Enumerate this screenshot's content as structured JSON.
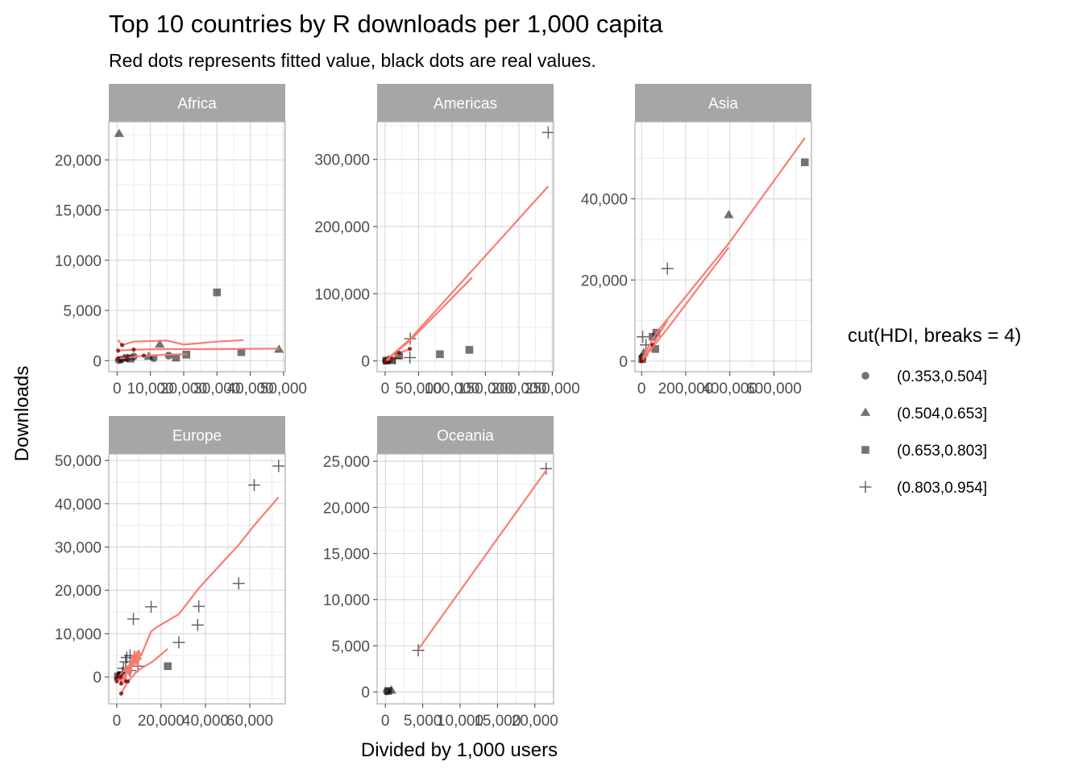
{
  "chart_data": {
    "type": "scatter",
    "title": "Top 10 countries by R downloads per 1,000 capita",
    "subtitle": "Red dots represents fitted value, black dots are real values.",
    "xlabel": "Divided by 1,000 users",
    "ylabel": "Downloads",
    "grid": true,
    "legend_position": "right",
    "legend": {
      "title": "cut(HDI, breaks = 4)",
      "entries": [
        {
          "label": "(0.353,0.504]",
          "shape": "circle"
        },
        {
          "label": "(0.504,0.653]",
          "shape": "triangle"
        },
        {
          "label": "(0.653,0.803]",
          "shape": "square"
        },
        {
          "label": "(0.803,0.954]",
          "shape": "plus"
        }
      ]
    },
    "colors": {
      "points": "#000000",
      "fitted": "#f8766d",
      "strip": "#a6a6a6",
      "panel_border": "#b3b3b3",
      "grid_major": "#d9d9d9",
      "grid_minor": "#ececec"
    },
    "facets": [
      {
        "name": "Africa",
        "xlim": [
          -2500,
          50500
        ],
        "ylim": [
          -1100,
          23800
        ],
        "x_ticks": [
          {
            "v": 0,
            "l": "0"
          },
          {
            "v": 10000,
            "l": "10,000"
          },
          {
            "v": 20000,
            "l": "20,000"
          },
          {
            "v": 30000,
            "l": "30,000"
          },
          {
            "v": 40000,
            "l": "40,000"
          },
          {
            "v": 50000,
            "l": "50,000"
          }
        ],
        "y_ticks": [
          {
            "v": 0,
            "l": "0"
          },
          {
            "v": 5000,
            "l": "5,000"
          },
          {
            "v": 10000,
            "l": "10,000"
          },
          {
            "v": 15000,
            "l": "15,000"
          },
          {
            "v": 20000,
            "l": "20,000"
          }
        ],
        "points": [
          {
            "x": 600,
            "y": 22600,
            "shape": "triangle"
          },
          {
            "x": 30000,
            "y": 6800,
            "shape": "square"
          },
          {
            "x": 48600,
            "y": 1100,
            "shape": "triangle"
          },
          {
            "x": 37300,
            "y": 850,
            "shape": "square"
          },
          {
            "x": 20800,
            "y": 600,
            "shape": "square"
          },
          {
            "x": 17700,
            "y": 300,
            "shape": "square"
          },
          {
            "x": 15500,
            "y": 500,
            "shape": "circle"
          },
          {
            "x": 12800,
            "y": 1600,
            "shape": "triangle"
          },
          {
            "x": 11000,
            "y": 250,
            "shape": "circle"
          },
          {
            "x": 9500,
            "y": 400,
            "shape": "triangle"
          },
          {
            "x": 5000,
            "y": 400,
            "shape": "circle"
          },
          {
            "x": 4000,
            "y": 200,
            "shape": "square"
          },
          {
            "x": 3000,
            "y": 300,
            "shape": "circle"
          },
          {
            "x": 2000,
            "y": 200,
            "shape": "triangle"
          },
          {
            "x": 1200,
            "y": 100,
            "shape": "circle"
          },
          {
            "x": 500,
            "y": 50,
            "shape": "circle"
          }
        ],
        "fitted_lines": [
          [
            [
              300,
              2050
            ],
            [
              1500,
              1550
            ],
            [
              5000,
              1900
            ],
            [
              15000,
              2000
            ],
            [
              20000,
              1600
            ],
            [
              30000,
              1900
            ],
            [
              38000,
              2050
            ]
          ],
          [
            [
              300,
              1000
            ],
            [
              5000,
              1100
            ],
            [
              15000,
              1150
            ],
            [
              30000,
              1150
            ],
            [
              48600,
              1200
            ]
          ],
          [
            [
              300,
              200
            ],
            [
              3000,
              300
            ],
            [
              8000,
              500
            ],
            [
              12000,
              550
            ],
            [
              17000,
              600
            ],
            [
              21000,
              650
            ]
          ]
        ]
      },
      {
        "name": "Americas",
        "xlim": [
          -12000,
          252000
        ],
        "ylim": [
          -16000,
          356000
        ],
        "x_ticks": [
          {
            "v": 0,
            "l": "0"
          },
          {
            "v": 50000,
            "l": "50,000"
          },
          {
            "v": 100000,
            "l": "100,000"
          },
          {
            "v": 150000,
            "l": "150,000"
          },
          {
            "v": 200000,
            "l": "200,000"
          },
          {
            "v": 250000,
            "l": "250,000"
          }
        ],
        "y_ticks": [
          {
            "v": 0,
            "l": "0"
          },
          {
            "v": 100000,
            "l": "100,000"
          },
          {
            "v": 200000,
            "l": "200,000"
          },
          {
            "v": 300000,
            "l": "300,000"
          }
        ],
        "points": [
          {
            "x": 244000,
            "y": 340000,
            "shape": "plus"
          },
          {
            "x": 126000,
            "y": 16500,
            "shape": "square"
          },
          {
            "x": 82000,
            "y": 10000,
            "shape": "square"
          },
          {
            "x": 37500,
            "y": 33000,
            "shape": "plus"
          },
          {
            "x": 37000,
            "y": 5000,
            "shape": "plus"
          },
          {
            "x": 21000,
            "y": 8000,
            "shape": "square"
          },
          {
            "x": 15000,
            "y": 4000,
            "shape": "plus"
          },
          {
            "x": 10000,
            "y": 1000,
            "shape": "square"
          },
          {
            "x": 5000,
            "y": 1500,
            "shape": "triangle"
          },
          {
            "x": 2000,
            "y": 500,
            "shape": "square"
          },
          {
            "x": 1000,
            "y": 300,
            "shape": "circle"
          }
        ],
        "fitted_lines": [
          [
            [
              0,
              0
            ],
            [
              37000,
              32000
            ],
            [
              126000,
              130000
            ],
            [
              244000,
              260000
            ]
          ],
          [
            [
              0,
              0
            ],
            [
              37000,
              30000
            ],
            [
              130000,
              124000
            ]
          ],
          [
            [
              0,
              0
            ],
            [
              10000,
              3000
            ],
            [
              21000,
              12000
            ],
            [
              37000,
              18000
            ]
          ]
        ]
      },
      {
        "name": "Asia",
        "xlim": [
          -30000,
          770000
        ],
        "ylim": [
          -2600,
          59000
        ],
        "x_ticks": [
          {
            "v": 0,
            "l": "0"
          },
          {
            "v": 200000,
            "l": "200,000"
          },
          {
            "v": 400000,
            "l": "400,000"
          },
          {
            "v": 600000,
            "l": "600,000"
          }
        ],
        "y_ticks": [
          {
            "v": 0,
            "l": "0"
          },
          {
            "v": 20000,
            "l": "20,000"
          },
          {
            "v": 40000,
            "l": "40,000"
          }
        ],
        "points": [
          {
            "x": 740000,
            "y": 49000,
            "shape": "square"
          },
          {
            "x": 395000,
            "y": 36000,
            "shape": "triangle"
          },
          {
            "x": 117000,
            "y": 22800,
            "shape": "plus"
          },
          {
            "x": 67000,
            "y": 7000,
            "shape": "square"
          },
          {
            "x": 50000,
            "y": 6000,
            "shape": "square"
          },
          {
            "x": 62000,
            "y": 3000,
            "shape": "square"
          },
          {
            "x": 5000,
            "y": 6000,
            "shape": "plus"
          },
          {
            "x": 20000,
            "y": 4000,
            "shape": "plus"
          },
          {
            "x": 10000,
            "y": 2000,
            "shape": "triangle"
          },
          {
            "x": 5000,
            "y": 1000,
            "shape": "circle"
          },
          {
            "x": 3000,
            "y": 500,
            "shape": "square"
          }
        ],
        "fitted_lines": [
          [
            [
              0,
              500
            ],
            [
              67000,
              7000
            ],
            [
              395000,
              29000
            ],
            [
              740000,
              55000
            ]
          ],
          [
            [
              0,
              0
            ],
            [
              50000,
              4000
            ],
            [
              117000,
              10000
            ]
          ],
          [
            [
              0,
              0
            ],
            [
              117000,
              8000
            ],
            [
              395000,
              28000
            ]
          ]
        ]
      },
      {
        "name": "Europe",
        "xlim": [
          -3600,
          76000
        ],
        "ylim": [
          -6200,
          51500
        ],
        "x_ticks": [
          {
            "v": 0,
            "l": "0"
          },
          {
            "v": 20000,
            "l": "20,000"
          },
          {
            "v": 40000,
            "l": "40,000"
          },
          {
            "v": 60000,
            "l": "60,000"
          }
        ],
        "y_ticks": [
          {
            "v": 0,
            "l": "0"
          },
          {
            "v": 10000,
            "l": "10,000"
          },
          {
            "v": 20000,
            "l": "20,000"
          },
          {
            "v": 30000,
            "l": "30,000"
          },
          {
            "v": 40000,
            "l": "40,000"
          },
          {
            "v": 50000,
            "l": "50,000"
          }
        ],
        "points": [
          {
            "x": 73000,
            "y": 48700,
            "shape": "plus"
          },
          {
            "x": 62000,
            "y": 44300,
            "shape": "plus"
          },
          {
            "x": 55000,
            "y": 21600,
            "shape": "plus"
          },
          {
            "x": 37000,
            "y": 16300,
            "shape": "plus"
          },
          {
            "x": 36500,
            "y": 12000,
            "shape": "plus"
          },
          {
            "x": 28000,
            "y": 8000,
            "shape": "plus"
          },
          {
            "x": 23000,
            "y": 2500,
            "shape": "square"
          },
          {
            "x": 15500,
            "y": 16200,
            "shape": "plus"
          },
          {
            "x": 7500,
            "y": 13400,
            "shape": "plus"
          },
          {
            "x": 9500,
            "y": 2500,
            "shape": "plus"
          },
          {
            "x": 6000,
            "y": 5000,
            "shape": "plus"
          },
          {
            "x": 4500,
            "y": 4500,
            "shape": "plus"
          },
          {
            "x": 4000,
            "y": 3500,
            "shape": "plus"
          },
          {
            "x": 6000,
            "y": 1500,
            "shape": "plus"
          },
          {
            "x": 3000,
            "y": 2000,
            "shape": "plus"
          },
          {
            "x": 2500,
            "y": 1000,
            "shape": "plus"
          },
          {
            "x": 2000,
            "y": 500,
            "shape": "square"
          },
          {
            "x": 1500,
            "y": 300,
            "shape": "circle"
          },
          {
            "x": 1000,
            "y": 200,
            "shape": "triangle"
          },
          {
            "x": 500,
            "y": 100,
            "shape": "square"
          }
        ],
        "fitted_lines": [
          [
            [
              500,
              0
            ],
            [
              8000,
              4000
            ],
            [
              9500,
              6000
            ],
            [
              11000,
              5000
            ],
            [
              15500,
              10500
            ],
            [
              18000,
              11500
            ],
            [
              28000,
              14500
            ],
            [
              37000,
              20500
            ],
            [
              55000,
              30500
            ],
            [
              62000,
              35000
            ],
            [
              73000,
              41500
            ]
          ],
          [
            [
              0,
              -1000
            ],
            [
              1500,
              0
            ],
            [
              2000,
              -1500
            ],
            [
              3000,
              500
            ],
            [
              4000,
              -1000
            ],
            [
              4500,
              2500
            ],
            [
              5500,
              500
            ],
            [
              6000,
              3500
            ],
            [
              6500,
              1000
            ],
            [
              7000,
              5000
            ],
            [
              7500,
              2500
            ],
            [
              8000,
              6000
            ],
            [
              8500,
              3000
            ],
            [
              9000,
              5500
            ],
            [
              9500,
              2000
            ],
            [
              10000,
              6000
            ],
            [
              10500,
              4000
            ],
            [
              11000,
              4500
            ]
          ],
          [
            [
              2000,
              -3800
            ],
            [
              5000,
              -1000
            ],
            [
              9500,
              1500
            ],
            [
              16000,
              3500
            ],
            [
              23000,
              6500
            ]
          ]
        ]
      },
      {
        "name": "Oceania",
        "xlim": [
          -1100,
          22500
        ],
        "ylim": [
          -1300,
          25800
        ],
        "x_ticks": [
          {
            "v": 0,
            "l": "0"
          },
          {
            "v": 5000,
            "l": "5,000"
          },
          {
            "v": 10000,
            "l": "10,000"
          },
          {
            "v": 15000,
            "l": "15,000"
          },
          {
            "v": 20000,
            "l": "20,000"
          }
        ],
        "y_ticks": [
          {
            "v": 0,
            "l": "0"
          },
          {
            "v": 5000,
            "l": "5,000"
          },
          {
            "v": 10000,
            "l": "10,000"
          },
          {
            "v": 15000,
            "l": "15,000"
          },
          {
            "v": 20000,
            "l": "20,000"
          },
          {
            "v": 25000,
            "l": "25,000"
          }
        ],
        "points": [
          {
            "x": 21500,
            "y": 24200,
            "shape": "plus"
          },
          {
            "x": 4400,
            "y": 4500,
            "shape": "plus"
          },
          {
            "x": 800,
            "y": 150,
            "shape": "triangle"
          },
          {
            "x": 400,
            "y": 100,
            "shape": "square"
          },
          {
            "x": 200,
            "y": 50,
            "shape": "circle"
          }
        ],
        "fitted_lines": [
          [
            [
              4400,
              4600
            ],
            [
              21500,
              24000
            ]
          ]
        ]
      }
    ]
  }
}
